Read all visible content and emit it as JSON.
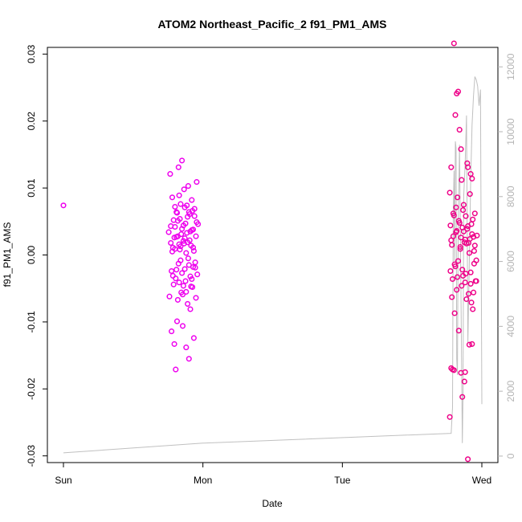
{
  "chart_data": {
    "type": "scatter",
    "title": "ATOM2 Northeast_Pacific_2 f91_PM1_AMS",
    "xlabel": "Date",
    "ylabel": "f91_PM1_AMS",
    "x_ticks": [
      "Sun",
      "Mon",
      "Tue",
      "Wed"
    ],
    "xlim_days": [
      -0.02,
      3.02
    ],
    "ylim": [
      -0.031,
      0.031
    ],
    "y_ticks": [
      -0.03,
      -0.02,
      -0.01,
      0.0,
      0.01,
      0.02,
      0.03
    ],
    "y_tick_labels": [
      "-0.03",
      "-0.02",
      "-0.01",
      "0.00",
      "0.01",
      "0.02",
      "0.03"
    ],
    "y2_ticks": [
      0,
      2000,
      4000,
      6000,
      8000,
      10000,
      12000
    ],
    "y2lim": [
      -200,
      12600
    ],
    "grid": false,
    "series": [
      {
        "style": "line",
        "color": "#c0c0c0",
        "points": [
          [
            0.0,
            100
          ],
          [
            1.0,
            400
          ],
          [
            2.78,
            700
          ],
          [
            2.79,
            1500
          ],
          [
            2.795,
            7500
          ],
          [
            2.8,
            8800
          ],
          [
            2.805,
            6000
          ],
          [
            2.81,
            9700
          ],
          [
            2.815,
            9500
          ],
          [
            2.82,
            3000
          ],
          [
            2.825,
            2500
          ],
          [
            2.83,
            7000
          ],
          [
            2.84,
            9600
          ],
          [
            2.85,
            5000
          ],
          [
            2.86,
            400
          ],
          [
            2.865,
            2000
          ],
          [
            2.87,
            8000
          ],
          [
            2.88,
            9000
          ],
          [
            2.89,
            10500
          ],
          [
            2.9,
            3500
          ],
          [
            2.91,
            6000
          ],
          [
            2.92,
            8500
          ],
          [
            2.93,
            10200
          ],
          [
            2.94,
            11100
          ],
          [
            2.95,
            11700
          ],
          [
            2.96,
            11600
          ],
          [
            2.97,
            11400
          ],
          [
            2.98,
            10800
          ],
          [
            2.99,
            11300
          ],
          [
            3.0,
            1600
          ]
        ]
      },
      {
        "style": "points",
        "color": "#ee00ee",
        "points": [
          [
            0.0,
            0.0074
          ],
          [
            0.755,
            0.0034
          ],
          [
            0.76,
            -0.0062
          ],
          [
            0.765,
            0.0121
          ],
          [
            0.77,
            0.0018
          ],
          [
            0.775,
            -0.0114
          ],
          [
            0.78,
            0.0086
          ],
          [
            0.785,
            -0.0031
          ],
          [
            0.79,
            0.0052
          ],
          [
            0.795,
            -0.0133
          ],
          [
            0.8,
            0.0042
          ],
          [
            0.805,
            -0.0171
          ],
          [
            0.81,
            0.0064
          ],
          [
            0.815,
            -0.0099
          ],
          [
            0.82,
            0.0028
          ],
          [
            0.825,
            0.0131
          ],
          [
            0.83,
            -0.0041
          ],
          [
            0.835,
            0.0008
          ],
          [
            0.84,
            0.0076
          ],
          [
            0.845,
            -0.0056
          ],
          [
            0.85,
            0.0141
          ],
          [
            0.855,
            -0.0106
          ],
          [
            0.86,
            0.0021
          ],
          [
            0.865,
            0.0098
          ],
          [
            0.87,
            -0.0021
          ],
          [
            0.875,
            0.0047
          ],
          [
            0.88,
            -0.0138
          ],
          [
            0.885,
            0.0033
          ],
          [
            0.89,
            -0.0073
          ],
          [
            0.895,
            0.0103
          ],
          [
            0.9,
            -0.0155
          ],
          [
            0.905,
            0.0061
          ],
          [
            0.91,
            -0.0032
          ],
          [
            0.915,
            0.0014
          ],
          [
            0.92,
            0.0082
          ],
          [
            0.925,
            -0.0048
          ],
          [
            0.93,
            0.0038
          ],
          [
            0.935,
            -0.0124
          ],
          [
            0.94,
            0.0058
          ],
          [
            0.945,
            -0.0011
          ],
          [
            0.95,
            0.0028
          ],
          [
            0.955,
            0.0109
          ],
          [
            0.96,
            -0.0029
          ],
          [
            0.965,
            0.0046
          ],
          [
            0.8,
            0.0009
          ],
          [
            0.81,
            -0.0022
          ],
          [
            0.82,
            0.0051
          ],
          [
            0.83,
            0.0016
          ],
          [
            0.84,
            -0.0008
          ],
          [
            0.85,
            0.0039
          ],
          [
            0.86,
            -0.0046
          ],
          [
            0.87,
            0.0025
          ],
          [
            0.88,
            0.0003
          ],
          [
            0.89,
            0.0057
          ],
          [
            0.9,
            -0.0015
          ],
          [
            0.91,
            0.0035
          ],
          [
            0.92,
            -0.0036
          ],
          [
            0.93,
            0.0011
          ],
          [
            0.94,
            0.0069
          ],
          [
            0.95,
            -0.0064
          ],
          [
            0.78,
            0.0005
          ],
          [
            0.79,
            -0.0044
          ],
          [
            0.8,
            0.0072
          ],
          [
            0.81,
            0.0027
          ],
          [
            0.82,
            -0.0067
          ],
          [
            0.83,
            0.0089
          ],
          [
            0.84,
            0.0013
          ],
          [
            0.85,
            -0.0027
          ],
          [
            0.86,
            0.0044
          ],
          [
            0.87,
            0.0071
          ],
          [
            0.88,
            -0.0055
          ],
          [
            0.89,
            0.0019
          ],
          [
            0.9,
            0.0064
          ],
          [
            0.91,
            -0.0081
          ],
          [
            0.92,
            0.0037
          ],
          [
            0.93,
            -0.0018
          ],
          [
            0.77,
            0.0043
          ],
          [
            0.775,
            -0.0024
          ],
          [
            0.785,
            0.0011
          ],
          [
            0.795,
            0.0026
          ],
          [
            0.805,
            -0.0035
          ],
          [
            0.815,
            0.0063
          ],
          [
            0.825,
            -0.0013
          ],
          [
            0.835,
            0.0054
          ],
          [
            0.845,
            0.0031
          ],
          [
            0.855,
            -0.0059
          ],
          [
            0.865,
            0.0017
          ],
          [
            0.875,
            -0.0039
          ],
          [
            0.885,
            0.0074
          ],
          [
            0.895,
            -0.0005
          ],
          [
            0.905,
            0.0022
          ],
          [
            0.915,
            -0.0047
          ],
          [
            0.925,
            0.0066
          ],
          [
            0.935,
            0.0006
          ],
          [
            0.945,
            -0.0019
          ],
          [
            0.955,
            0.0049
          ],
          [
            2.77,
            0.0093
          ],
          [
            2.775,
            -0.0024
          ],
          [
            2.78,
            0.0131
          ],
          [
            2.785,
            0.0015
          ],
          [
            2.79,
            -0.0171
          ],
          [
            2.795,
            0.0062
          ],
          [
            2.8,
            0.0316
          ],
          [
            2.805,
            -0.0087
          ],
          [
            2.81,
            0.0209
          ],
          [
            2.815,
            0.0034
          ],
          [
            2.82,
            -0.0052
          ],
          [
            2.825,
            0.0086
          ],
          [
            2.83,
            0.0244
          ],
          [
            2.835,
            -0.0113
          ],
          [
            2.84,
            0.0187
          ],
          [
            2.845,
            0.0009
          ],
          [
            2.85,
            -0.0176
          ],
          [
            2.855,
            0.0112
          ],
          [
            2.86,
            0.0041
          ],
          [
            2.865,
            -0.0031
          ],
          [
            2.87,
            0.0075
          ],
          [
            2.875,
            -0.0189
          ],
          [
            2.88,
            0.0023
          ],
          [
            2.885,
            0.0058
          ],
          [
            2.89,
            -0.0066
          ],
          [
            2.895,
            0.0137
          ],
          [
            2.9,
            -0.0305
          ],
          [
            2.905,
            0.0018
          ],
          [
            2.91,
            -0.0134
          ],
          [
            2.915,
            0.0091
          ],
          [
            2.92,
            -0.0043
          ],
          [
            2.925,
            0.0046
          ],
          [
            2.93,
            0.0114
          ],
          [
            2.935,
            -0.0081
          ],
          [
            2.94,
            0.0027
          ],
          [
            2.945,
            -0.0013
          ],
          [
            2.95,
            0.0062
          ],
          [
            2.955,
            -0.0039
          ],
          [
            2.775,
            0.0044
          ],
          [
            2.785,
            -0.0063
          ],
          [
            2.795,
            0.0028
          ],
          [
            2.805,
            -0.0014
          ],
          [
            2.815,
            0.0071
          ],
          [
            2.825,
            -0.0033
          ],
          [
            2.835,
            0.0051
          ],
          [
            2.845,
            0.0012
          ],
          [
            2.855,
            -0.0046
          ],
          [
            2.865,
            0.0067
          ],
          [
            2.875,
            0.0019
          ],
          [
            2.885,
            -0.0028
          ],
          [
            2.895,
            0.0039
          ],
          [
            2.905,
            -0.0058
          ],
          [
            2.915,
            0.0024
          ],
          [
            2.925,
            -0.0071
          ],
          [
            2.935,
            0.0053
          ],
          [
            2.945,
            0.0006
          ],
          [
            2.78,
            0.0022
          ],
          [
            2.79,
            -0.0036
          ],
          [
            2.8,
            0.0059
          ],
          [
            2.81,
            -0.0017
          ],
          [
            2.82,
            0.0036
          ],
          [
            2.83,
            -0.0009
          ],
          [
            2.84,
            0.0048
          ],
          [
            2.85,
            0.0026
          ],
          [
            2.86,
            -0.0022
          ],
          [
            2.87,
            0.0035
          ],
          [
            2.88,
            -0.0041
          ],
          [
            2.89,
            0.0017
          ],
          [
            2.9,
            0.0043
          ],
          [
            2.91,
            0.0003
          ],
          [
            2.92,
            -0.0026
          ],
          [
            2.93,
            0.0031
          ],
          [
            2.94,
            -0.0056
          ],
          [
            2.95,
            0.0014
          ],
          [
            2.96,
            -0.0008
          ],
          [
            2.965,
            0.0029
          ],
          [
            2.77,
            -0.0242
          ],
          [
            2.78,
            -0.0169
          ],
          [
            2.8,
            -0.0172
          ],
          [
            2.86,
            -0.0212
          ],
          [
            2.88,
            -0.0175
          ],
          [
            2.93,
            -0.0133
          ],
          [
            2.96,
            -0.0039
          ],
          [
            2.82,
            0.0241
          ],
          [
            2.85,
            0.0158
          ],
          [
            2.9,
            0.0131
          ],
          [
            2.92,
            0.0121
          ]
        ]
      }
    ]
  }
}
